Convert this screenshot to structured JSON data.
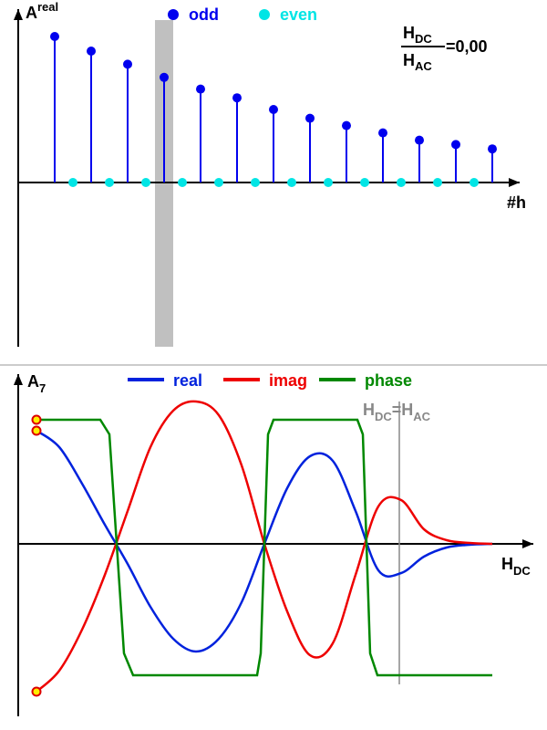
{
  "chart_data": [
    {
      "type": "stem",
      "y_label": {
        "base": "A",
        "sup": "real"
      },
      "x_label": "#h",
      "annotation": {
        "num": "H",
        "num_sub": "DC",
        "den": "H",
        "den_sub": "AC",
        "value": "=0,00"
      },
      "highlight_x": 7,
      "xlim": [
        -1,
        26.5
      ],
      "ylim": [
        -1.125,
        1.1875
      ],
      "series": [
        {
          "name": "odd",
          "color": "#0000ee",
          "x": [
            1,
            3,
            5,
            7,
            9,
            11,
            13,
            15,
            17,
            19,
            21,
            23,
            25
          ],
          "values": [
            1,
            0.9,
            0.81,
            0.72,
            0.64,
            0.58,
            0.5,
            0.44,
            0.39,
            0.34,
            0.29,
            0.26,
            0.23
          ]
        },
        {
          "name": "even",
          "color": "#00e5e5",
          "x": [
            2,
            4,
            6,
            8,
            10,
            12,
            14,
            16,
            18,
            20,
            22,
            24
          ],
          "values": [
            0,
            0,
            0,
            0,
            0,
            0,
            0,
            0,
            0,
            0,
            0,
            0
          ]
        }
      ]
    },
    {
      "type": "line",
      "y_label": {
        "base": "A",
        "sub": "7"
      },
      "x_label": {
        "base": "H",
        "sub": "DC"
      },
      "marker": {
        "x": 79.6,
        "label": {
          "a": "H",
          "a_sub": "DC",
          "eq": "=",
          "b": "H",
          "b_sub": "AC"
        }
      },
      "xlim": [
        -4,
        109
      ],
      "ylim": [
        -1.89,
        1.86
      ],
      "x": [
        0,
        5,
        10,
        15,
        20,
        25,
        30,
        35,
        40,
        45,
        50,
        55,
        60,
        65,
        70,
        75,
        80,
        85,
        90,
        95,
        100
      ],
      "series": [
        {
          "name": "real",
          "color": "#0022dd",
          "values": [
            1.24,
            1.06,
            0.66,
            0.21,
            -0.22,
            -0.69,
            -1.04,
            -1.18,
            -1.04,
            -0.64,
            0,
            0.61,
            0.96,
            0.91,
            0.36,
            -0.29,
            -0.32,
            -0.14,
            -0.04,
            -0.01,
            0
          ]
        },
        {
          "name": "imag",
          "color": "#ee0000",
          "values": [
            -1.62,
            -1.39,
            -0.94,
            -0.34,
            0.36,
            1.06,
            1.46,
            1.56,
            1.41,
            0.86,
            0,
            -0.74,
            -1.22,
            -1.09,
            -0.34,
            0.41,
            0.48,
            0.16,
            0.04,
            0.01,
            0
          ]
        },
        {
          "name": "phase",
          "color": "#008800",
          "x": [
            0,
            14,
            16,
            17.6,
            19.2,
            21.2,
            48.4,
            49.2,
            50,
            50.8,
            52,
            70.4,
            71.6,
            72.4,
            73.2,
            74.8,
            100
          ],
          "values": [
            1.36,
            1.36,
            1.2,
            0,
            -1.2,
            -1.44,
            -1.44,
            -1.2,
            0,
            1.2,
            1.36,
            1.36,
            1.2,
            0,
            -1.2,
            -1.44,
            -1.44
          ]
        }
      ]
    }
  ]
}
